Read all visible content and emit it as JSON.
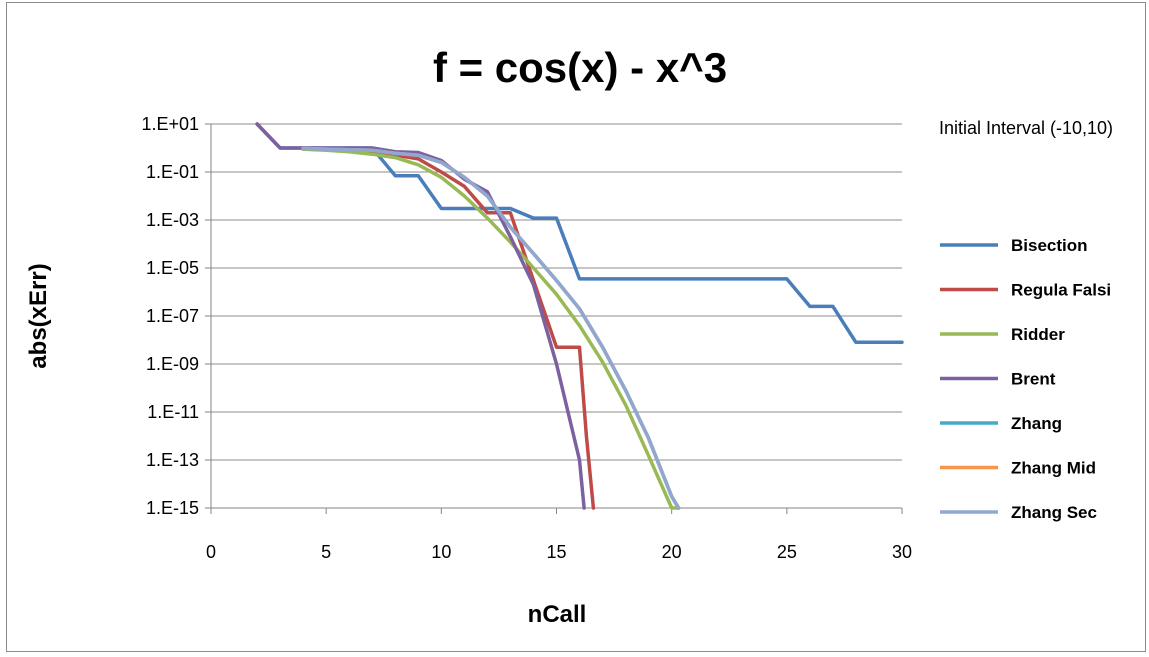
{
  "chart_data": {
    "type": "line",
    "title": "f = cos(x) - x^3",
    "xlabel": "nCall",
    "ylabel": "abs(xErr)",
    "annotation": "Initial Interval (-10,10)",
    "xlim": [
      0,
      30
    ],
    "ylim": [
      1e-15,
      10
    ],
    "y_scale": "log",
    "x_ticks": [
      0,
      5,
      10,
      15,
      20,
      25,
      30
    ],
    "y_ticks": [
      {
        "value": 10,
        "label": "1.E+01"
      },
      {
        "value": 0.1,
        "label": "1.E-01"
      },
      {
        "value": 0.001,
        "label": "1.E-03"
      },
      {
        "value": 1e-05,
        "label": "1.E-05"
      },
      {
        "value": 1e-07,
        "label": "1.E-07"
      },
      {
        "value": 1e-09,
        "label": "1.E-09"
      },
      {
        "value": 1e-11,
        "label": "1.E-11"
      },
      {
        "value": 1e-13,
        "label": "1.E-13"
      },
      {
        "value": 1e-15,
        "label": "1.E-15"
      }
    ],
    "grid": "horizontal",
    "legend_position": "right",
    "series": [
      {
        "name": "Bisection",
        "color": "#4a7ebb",
        "x": [
          2,
          3,
          4,
          5,
          6,
          7,
          8,
          9,
          10,
          11,
          12,
          13,
          14,
          15,
          16,
          17,
          18,
          19,
          20,
          21,
          22,
          23,
          24,
          25,
          26,
          27,
          28,
          29,
          30
        ],
        "y": [
          10,
          1,
          1,
          1,
          1,
          1,
          0.07,
          0.07,
          0.003,
          0.003,
          0.003,
          0.003,
          0.0012,
          0.0012,
          3.5e-06,
          3.5e-06,
          3.5e-06,
          3.5e-06,
          3.5e-06,
          3.5e-06,
          3.5e-06,
          3.5e-06,
          3.5e-06,
          3.5e-06,
          2.5e-07,
          2.5e-07,
          8e-09,
          8e-09,
          8e-09
        ]
      },
      {
        "name": "Regula Falsi",
        "color": "#be4b48",
        "x": [
          4,
          5,
          6,
          7,
          8,
          9,
          10,
          11,
          12,
          13,
          14,
          15,
          16,
          16.3,
          16.6
        ],
        "y": [
          0.9,
          0.85,
          0.8,
          0.7,
          0.5,
          0.35,
          0.1,
          0.025,
          0.002,
          0.002,
          3e-06,
          5e-09,
          5e-09,
          1e-12,
          1e-15
        ]
      },
      {
        "name": "Ridder",
        "color": "#98b954",
        "x": [
          4,
          5,
          6,
          7,
          8,
          9,
          10,
          11,
          12,
          13,
          14,
          15,
          16,
          17,
          18,
          19,
          20,
          20.3
        ],
        "y": [
          0.9,
          0.8,
          0.7,
          0.55,
          0.4,
          0.2,
          0.06,
          0.01,
          0.0012,
          0.00012,
          1e-05,
          8e-07,
          4e-08,
          1.2e-09,
          2e-11,
          1.5e-13,
          1e-15,
          1e-15
        ]
      },
      {
        "name": "Brent",
        "color": "#7d60a0",
        "x": [
          2,
          3,
          4,
          5,
          6,
          7,
          8,
          9,
          10,
          11,
          12,
          13,
          14,
          15,
          16,
          16.2
        ],
        "y": [
          10,
          1,
          1,
          1,
          1,
          1,
          0.7,
          0.65,
          0.3,
          0.05,
          0.015,
          0.0002,
          2e-06,
          1e-09,
          1e-13,
          1e-15
        ]
      },
      {
        "name": "Zhang",
        "color": "#46aac5",
        "x": [
          4,
          5,
          6,
          7,
          8,
          9,
          10,
          11,
          12,
          13,
          14,
          15,
          16,
          17,
          18,
          19,
          20,
          20.3
        ],
        "y": [
          0.95,
          0.9,
          0.85,
          0.8,
          0.6,
          0.5,
          0.25,
          0.06,
          0.01,
          0.0005,
          4e-05,
          3e-06,
          2e-07,
          5e-09,
          8e-11,
          8e-13,
          3e-15,
          1e-15
        ]
      },
      {
        "name": "Zhang Mid",
        "color": "#f79646",
        "x": [
          4,
          5,
          6,
          7,
          8,
          9,
          10,
          11,
          12,
          13,
          14,
          15,
          16,
          17,
          18,
          19,
          20,
          20.3
        ],
        "y": [
          0.95,
          0.9,
          0.85,
          0.8,
          0.6,
          0.5,
          0.25,
          0.06,
          0.01,
          0.0005,
          4e-05,
          3e-06,
          2e-07,
          5e-09,
          8e-11,
          8e-13,
          3e-15,
          1e-15
        ]
      },
      {
        "name": "Zhang Sec",
        "color": "#8fa8d2",
        "x": [
          4,
          5,
          6,
          7,
          8,
          9,
          10,
          11,
          12,
          13,
          14,
          15,
          16,
          17,
          18,
          19,
          20,
          20.3
        ],
        "y": [
          0.95,
          0.9,
          0.85,
          0.8,
          0.6,
          0.5,
          0.25,
          0.06,
          0.01,
          0.0005,
          4e-05,
          3e-06,
          2e-07,
          5e-09,
          8e-11,
          8e-13,
          3e-15,
          1e-15
        ]
      }
    ]
  }
}
